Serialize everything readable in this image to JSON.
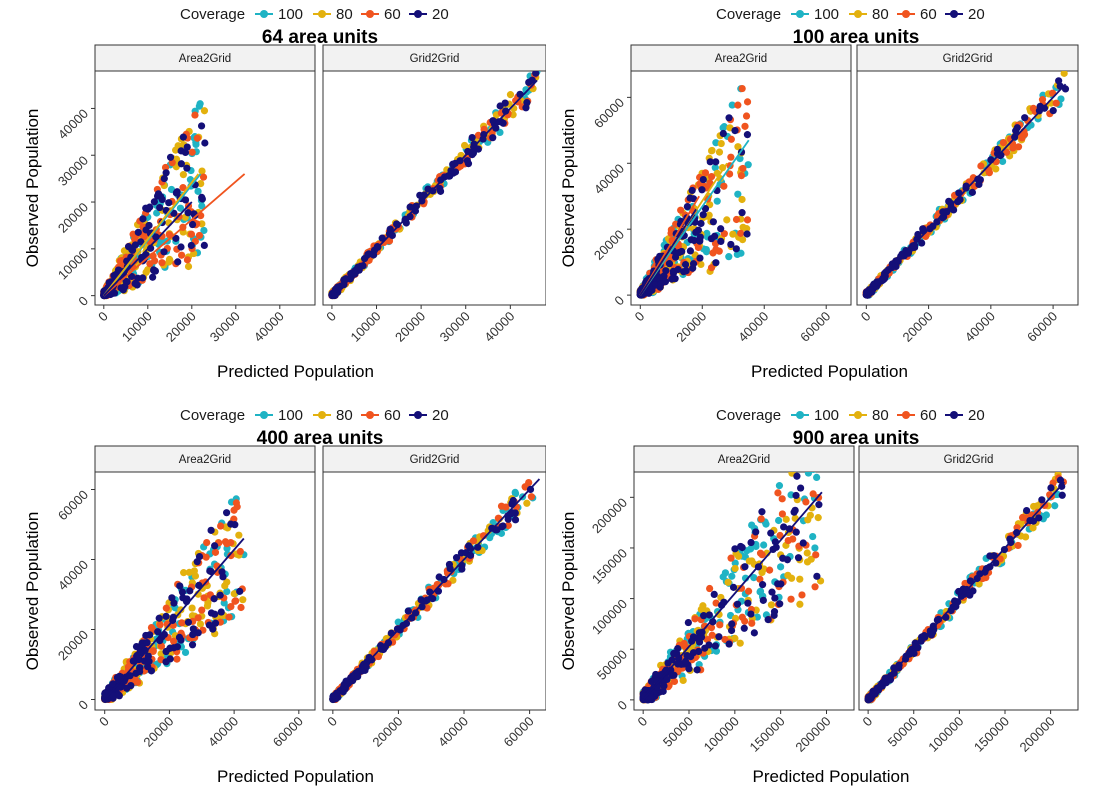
{
  "legend": {
    "title": "Coverage",
    "entries": [
      {
        "label": "100",
        "color": "#1fb3c4"
      },
      {
        "label": "80",
        "color": "#e3b10e"
      },
      {
        "label": "60",
        "color": "#f0541f"
      },
      {
        "label": "20",
        "color": "#140f78"
      }
    ]
  },
  "chart_data": [
    {
      "type": "scatter",
      "title": "64  area units",
      "xlabel": "Predicted Population",
      "ylabel": "Observed Population",
      "facets": [
        "Area2Grid",
        "Grid2Grid"
      ],
      "xlim": [
        -2000,
        48000
      ],
      "ylim": [
        -2000,
        48000
      ],
      "xticks": [
        0,
        10000,
        20000,
        30000,
        40000
      ],
      "yticks": [
        0,
        10000,
        20000,
        30000,
        40000
      ],
      "facet_xmax": [
        23000,
        46000
      ],
      "fit_lines": [
        {
          "facet": "Area2Grid",
          "series": "100",
          "x": [
            0,
            22000
          ],
          "y": [
            0,
            26000
          ]
        },
        {
          "facet": "Area2Grid",
          "series": "80",
          "x": [
            0,
            21500
          ],
          "y": [
            0,
            26000
          ]
        },
        {
          "facet": "Area2Grid",
          "series": "60",
          "x": [
            0,
            32000
          ],
          "y": [
            0,
            26000
          ]
        },
        {
          "facet": "Area2Grid",
          "series": "20",
          "x": [
            0,
            20000
          ],
          "y": [
            0,
            20000
          ]
        },
        {
          "facet": "Grid2Grid",
          "series": "all",
          "x": [
            0,
            46000
          ],
          "y": [
            0,
            46000
          ]
        }
      ]
    },
    {
      "type": "scatter",
      "title": "100  area units",
      "xlabel": "Predicted Population",
      "ylabel": "Observed Population",
      "facets": [
        "Area2Grid",
        "Grid2Grid"
      ],
      "xlim": [
        -3000,
        68000
      ],
      "ylim": [
        -3000,
        68000
      ],
      "xticks": [
        0,
        20000,
        40000,
        60000
      ],
      "yticks": [
        0,
        20000,
        40000,
        60000
      ],
      "facet_xmax": [
        35000,
        65000
      ],
      "fit_lines": [
        {
          "facet": "Area2Grid",
          "series": "100",
          "x": [
            0,
            35000
          ],
          "y": [
            0,
            47000
          ]
        },
        {
          "facet": "Area2Grid",
          "series": "80",
          "x": [
            0,
            28000
          ],
          "y": [
            0,
            40000
          ]
        },
        {
          "facet": "Area2Grid",
          "series": "60",
          "x": [
            0,
            19000
          ],
          "y": [
            0,
            30000
          ]
        },
        {
          "facet": "Area2Grid",
          "series": "20",
          "x": [
            0,
            18000
          ],
          "y": [
            0,
            26000
          ]
        },
        {
          "facet": "Grid2Grid",
          "series": "all",
          "x": [
            0,
            64000
          ],
          "y": [
            0,
            64000
          ]
        }
      ]
    },
    {
      "type": "scatter",
      "title": "400  area units",
      "xlabel": "Predicted Population",
      "ylabel": "Observed Population",
      "facets": [
        "Area2Grid",
        "Grid2Grid"
      ],
      "xlim": [
        -3000,
        65000
      ],
      "ylim": [
        -3000,
        65000
      ],
      "xticks": [
        0,
        20000,
        40000,
        60000
      ],
      "yticks": [
        0,
        20000,
        40000,
        60000
      ],
      "facet_xmax": [
        43000,
        62000
      ],
      "fit_lines": [
        {
          "facet": "Area2Grid",
          "series": "all",
          "x": [
            0,
            43000
          ],
          "y": [
            0,
            46000
          ]
        },
        {
          "facet": "Grid2Grid",
          "series": "all",
          "x": [
            0,
            63000
          ],
          "y": [
            0,
            63000
          ]
        }
      ]
    },
    {
      "type": "scatter",
      "title": "900  area units",
      "xlabel": "Predicted Population",
      "ylabel": "Observed Population",
      "facets": [
        "Area2Grid",
        "Grid2Grid"
      ],
      "xlim": [
        -10000,
        230000
      ],
      "ylim": [
        -10000,
        225000
      ],
      "xticks": [
        0,
        50000,
        100000,
        150000,
        200000
      ],
      "yticks": [
        0,
        50000,
        100000,
        150000,
        200000
      ],
      "facet_xmax": [
        195000,
        215000
      ],
      "fit_lines": [
        {
          "facet": "Area2Grid",
          "series": "all",
          "x": [
            0,
            195000
          ],
          "y": [
            0,
            205000
          ]
        },
        {
          "facet": "Grid2Grid",
          "series": "all",
          "x": [
            0,
            215000
          ],
          "y": [
            0,
            215000
          ]
        }
      ]
    }
  ]
}
